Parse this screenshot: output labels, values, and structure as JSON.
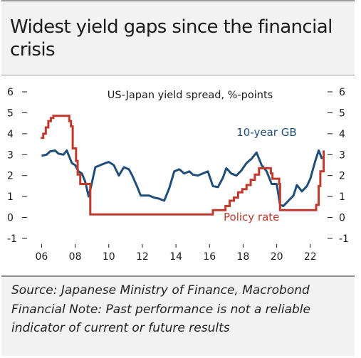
{
  "title": "Widest yield gaps since the financial crisis",
  "source": "Source: Japanese Ministry of Finance, Macrobond Financial Note: Past performance is not a reliable indicator of current or future results",
  "colors": {
    "gb": "#1f4e79",
    "policy": "#c0392b",
    "text": "#1a1a1a",
    "background": "#f2f2f2"
  },
  "chart_data": {
    "type": "line",
    "title": "US-Japan yield spread, %-points",
    "xlabel": "",
    "ylabel": "",
    "xlim": [
      2005.6,
      2022.9
    ],
    "ylim": [
      -1,
      6
    ],
    "x_tick_labels": [
      "06",
      "08",
      "10",
      "12",
      "14",
      "16",
      "18",
      "20",
      "22"
    ],
    "y_tick_labels": [
      "-1",
      "0",
      "1",
      "2",
      "3",
      "4",
      "5",
      "6"
    ],
    "grid": false,
    "series": [
      {
        "name": "10-year GB",
        "color": "#1f4e79",
        "x": [
          2006.0,
          2006.3,
          2006.5,
          2006.8,
          2007.0,
          2007.3,
          2007.5,
          2007.8,
          2008.0,
          2008.2,
          2008.4,
          2008.6,
          2008.8,
          2008.95,
          2009.2,
          2009.5,
          2009.8,
          2010.0,
          2010.3,
          2010.6,
          2010.9,
          2011.2,
          2011.4,
          2011.7,
          2011.9,
          2012.1,
          2012.4,
          2012.7,
          2013.0,
          2013.3,
          2013.6,
          2013.9,
          2014.2,
          2014.5,
          2014.8,
          2015.0,
          2015.3,
          2015.6,
          2015.9,
          2016.2,
          2016.5,
          2016.8,
          2017.0,
          2017.3,
          2017.6,
          2017.9,
          2018.2,
          2018.5,
          2018.8,
          2019.1,
          2019.4,
          2019.7,
          2020.0,
          2020.2,
          2020.4,
          2020.7,
          2021.0,
          2021.2,
          2021.5,
          2021.8,
          2022.0,
          2022.3,
          2022.5,
          2022.7
        ],
        "values": [
          2.95,
          3.0,
          3.15,
          3.2,
          3.05,
          3.0,
          3.2,
          2.6,
          2.5,
          2.2,
          2.1,
          1.7,
          1.0,
          1.5,
          2.4,
          2.5,
          2.6,
          2.65,
          2.5,
          2.0,
          2.4,
          2.3,
          2.0,
          1.45,
          1.05,
          1.05,
          1.05,
          0.95,
          0.9,
          0.8,
          1.4,
          2.2,
          2.3,
          2.1,
          2.2,
          2.05,
          2.0,
          2.1,
          2.2,
          1.5,
          1.45,
          1.9,
          2.35,
          2.1,
          2.0,
          2.25,
          2.6,
          2.8,
          3.1,
          2.5,
          2.2,
          1.6,
          1.6,
          0.6,
          0.55,
          0.8,
          1.05,
          1.55,
          1.25,
          1.5,
          1.85,
          2.7,
          3.2,
          2.8
        ]
      },
      {
        "name": "Policy rate",
        "color": "#c0392b",
        "x": [
          2005.95,
          2006.1,
          2006.25,
          2006.4,
          2006.55,
          2006.7,
          2007.2,
          2007.5,
          2007.65,
          2007.75,
          2007.85,
          2008.05,
          2008.15,
          2008.3,
          2008.75,
          2008.9,
          2009.0,
          2016.0,
          2016.2,
          2016.4,
          2016.95,
          2017.2,
          2017.45,
          2017.7,
          2017.95,
          2018.2,
          2018.45,
          2018.7,
          2018.95,
          2019.5,
          2019.65,
          2019.75,
          2020.15,
          2020.2,
          2020.25,
          2022.2,
          2022.35,
          2022.5,
          2022.6,
          2022.8
        ],
        "values": [
          3.8,
          4.0,
          4.3,
          4.6,
          4.75,
          4.85,
          4.85,
          4.85,
          4.6,
          4.35,
          3.3,
          2.7,
          2.05,
          1.6,
          1.6,
          0.15,
          0.15,
          0.15,
          0.35,
          0.35,
          0.55,
          0.8,
          0.95,
          1.2,
          1.35,
          1.55,
          1.8,
          2.05,
          2.35,
          2.35,
          2.1,
          1.85,
          1.6,
          0.35,
          0.35,
          0.35,
          0.6,
          1.5,
          2.2,
          3.2
        ]
      }
    ],
    "annotations": [
      {
        "text": "10-year GB",
        "x": 2019.4,
        "y": 3.9,
        "color": "#1f4e79"
      },
      {
        "text": "Policy rate",
        "x": 2018.5,
        "y": -0.15,
        "color": "#c0392b"
      }
    ]
  }
}
